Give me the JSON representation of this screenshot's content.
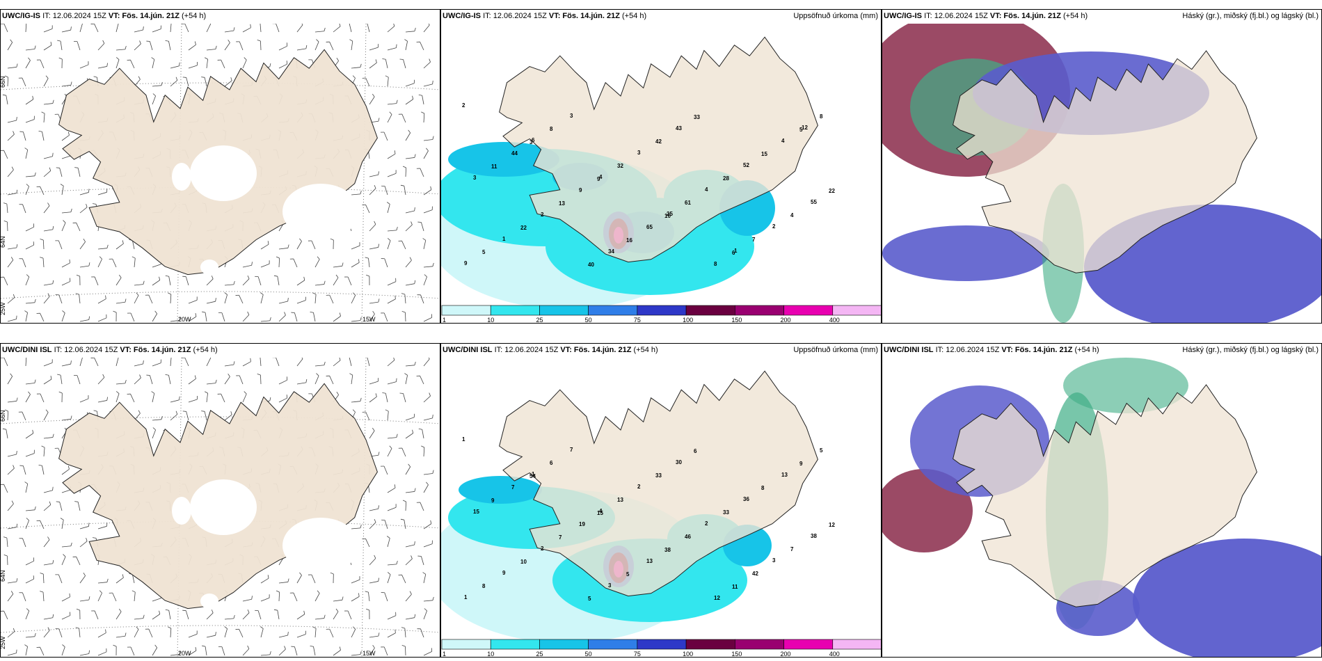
{
  "colors": {
    "land": "#efe3d3",
    "precip": [
      "#cff7f9",
      "#33e6ee",
      "#17c4e8",
      "#2f7ee8",
      "#2e38c8",
      "#6a0040",
      "#990070",
      "#e800b0",
      "#f4b6f4"
    ],
    "cloud_low": "#5a5ccc",
    "cloud_mid": "#3fae86",
    "cloud_high": "#8a2a4a"
  },
  "rows": [
    {
      "model": "UWC/IG-IS",
      "it_label": "IT: 12.06.2024 15Z",
      "vt_label": "VT: Fös. 14.jún. 21Z",
      "lead": "(+54 h)",
      "wind_panel": {
        "lat_labels": [
          "66N",
          "64N",
          "25W"
        ],
        "lon_labels": [
          "20W",
          "15W"
        ]
      },
      "precip_panel": {
        "title": "Uppsöfnuð úrkoma (mm)",
        "numbers": [
          "2",
          "3",
          "9",
          "10",
          "6",
          "5",
          "11",
          "13",
          "16",
          "33",
          "15",
          "22",
          "22",
          "40",
          "42",
          "28",
          "4",
          "5",
          "8",
          "32",
          "61",
          "7",
          "8",
          "44",
          "9",
          "65",
          "8",
          "4",
          "3",
          "2",
          "34",
          "43",
          "52",
          "55",
          "1",
          "3",
          "3",
          "4",
          "2",
          "9",
          "6",
          "4",
          "25",
          "1",
          "12"
        ]
      },
      "cloud_panel": {
        "title": "Háský (gr.), miðský (fj.bl.) og lágský (bl.)"
      }
    },
    {
      "model": "UWC/DINI ISL",
      "it_label": "IT: 12.06.2024 15Z",
      "vt_label": "VT: Fös. 14.jún. 21Z",
      "lead": "(+54 h)",
      "wind_panel": {
        "lat_labels": [
          "66N",
          "64N",
          "25W"
        ],
        "lon_labels": [
          "20W",
          "15W"
        ]
      },
      "precip_panel": {
        "title": "Uppsöfnuð úrkoma (mm)",
        "numbers": [
          "1",
          "54",
          "15",
          "38",
          "11",
          "9",
          "9",
          "7",
          "5",
          "6",
          "8",
          "12",
          "10",
          "5",
          "33",
          "33",
          "7",
          "8",
          "6",
          "13",
          "46",
          "42",
          "5",
          "7",
          "19",
          "13",
          "12",
          "13",
          "15",
          "2",
          "3",
          "30",
          "36",
          "38",
          "9",
          "7",
          "2",
          "2",
          "3",
          "1",
          "1",
          "4"
        ]
      },
      "cloud_panel": {
        "title": "Háský (gr.), miðský (fj.bl.) og lágský (bl.)"
      }
    }
  ],
  "colorbar": {
    "ticks": [
      "1",
      "10",
      "25",
      "50",
      "75",
      "100",
      "150",
      "200",
      "400"
    ]
  }
}
